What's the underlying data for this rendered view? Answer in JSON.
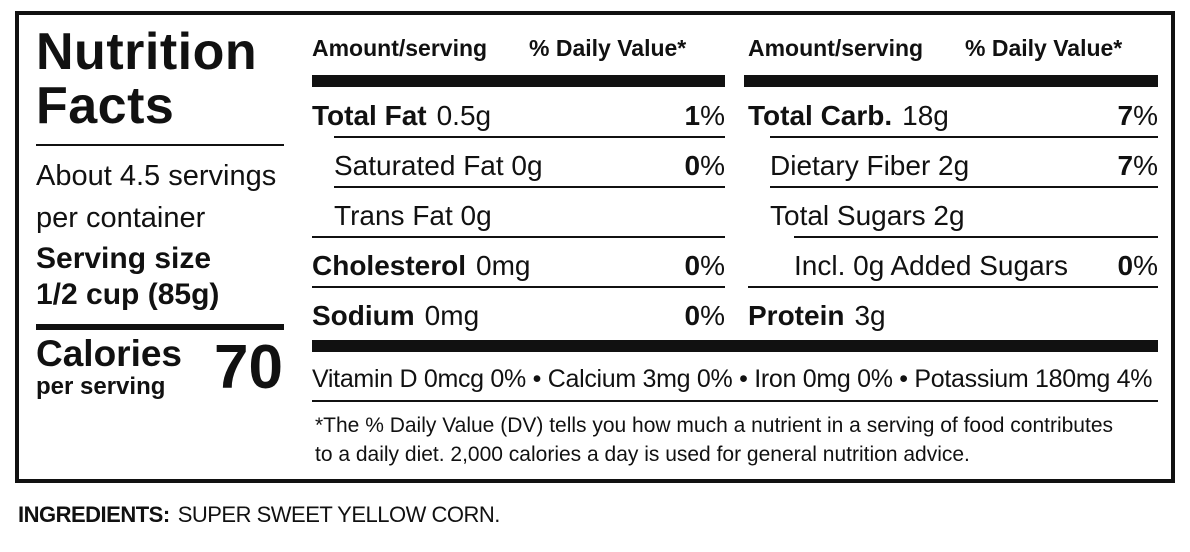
{
  "label": {
    "title_line1": "Nutrition",
    "title_line2": "Facts",
    "servings_line1": "About 4.5 servings",
    "servings_line2": "per container",
    "serving_size_label": "Serving size",
    "serving_size_value": "1/2 cup (85g)",
    "calories_label": "Calories",
    "calories_sub": "per serving",
    "calories_value": "70"
  },
  "headers": {
    "left": {
      "amount": "Amount/serving",
      "dv": "% Daily Value*"
    },
    "right": {
      "amount": "Amount/serving",
      "dv": "% Daily Value*"
    }
  },
  "left_rows": [
    {
      "name": "Total Fat",
      "amount": "0.5g",
      "bold": true,
      "indent": 0,
      "pct_num": "1",
      "pct_sign": "%"
    },
    {
      "name": "Saturated Fat 0g",
      "amount": "",
      "bold": false,
      "indent": 1,
      "pct_num": "0",
      "pct_sign": "%"
    },
    {
      "name": "Trans Fat 0g",
      "amount": "",
      "bold": false,
      "indent": 1,
      "pct_num": "",
      "pct_sign": ""
    },
    {
      "name": "Cholesterol",
      "amount": "0mg",
      "bold": true,
      "indent": 0,
      "pct_num": "0",
      "pct_sign": "%"
    },
    {
      "name": "Sodium",
      "amount": "0mg",
      "bold": true,
      "indent": 0,
      "pct_num": "0",
      "pct_sign": "%"
    }
  ],
  "right_rows": [
    {
      "name": "Total Carb.",
      "amount": "18g",
      "bold": true,
      "indent": 0,
      "pct_num": "7",
      "pct_sign": "%"
    },
    {
      "name": "Dietary Fiber 2g",
      "amount": "",
      "bold": false,
      "indent": 1,
      "pct_num": "7",
      "pct_sign": "%"
    },
    {
      "name": "Total Sugars 2g",
      "amount": "",
      "bold": false,
      "indent": 1,
      "pct_num": "",
      "pct_sign": ""
    },
    {
      "name": "Incl. 0g Added Sugars",
      "amount": "",
      "bold": false,
      "indent": 2,
      "pct_num": "0",
      "pct_sign": "%"
    },
    {
      "name": "Protein",
      "amount": "3g",
      "bold": true,
      "indent": 0,
      "pct_num": "",
      "pct_sign": ""
    }
  ],
  "vitamins": "Vitamin D 0mcg 0% • Calcium 3mg 0% • Iron 0mg 0% • Potassium 180mg 4%",
  "footnote_line1": "*The % Daily Value (DV) tells you how much a nutrient in a serving of food contributes",
  "footnote_line2": "to a daily diet. 2,000 calories a day is used for general nutrition advice.",
  "ingredients_label": "INGREDIENTS:",
  "ingredients_text": "SUPER SWEET YELLOW CORN.",
  "colors": {
    "ink": "#111111",
    "background": "#ffffff"
  }
}
